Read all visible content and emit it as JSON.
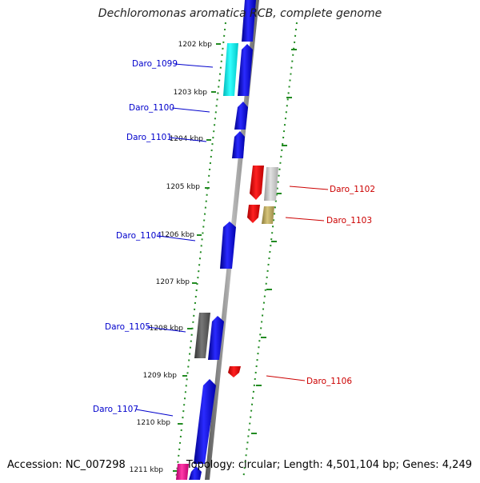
{
  "title": "Dechloromonas aromatica RCB, complete genome",
  "footer": {
    "accession": "Accession: NC_007298",
    "summary": "Topology: circular; Length: 4,501,104 bp; Genes: 4,249"
  },
  "colors": {
    "forward_gene": "#0000ee",
    "reverse_gene": "#ee0000",
    "left_label": "#0000cc",
    "right_label": "#cc0000",
    "dotted_track": "#228b22",
    "backbone": "#777777"
  },
  "ticks": [
    "1202 kbp",
    "1203 kbp",
    "1204 kbp",
    "1205 kbp",
    "1206 kbp",
    "1207 kbp",
    "1208 kbp",
    "1209 kbp",
    "1210 kbp",
    "1211 kbp"
  ],
  "left_labels": [
    "Daro_1099",
    "Daro_1100",
    "Daro_1101",
    "Daro_1104",
    "Daro_1105",
    "Daro_1107"
  ],
  "right_labels": [
    "Daro_1102",
    "Daro_1103",
    "Daro_1106"
  ]
}
